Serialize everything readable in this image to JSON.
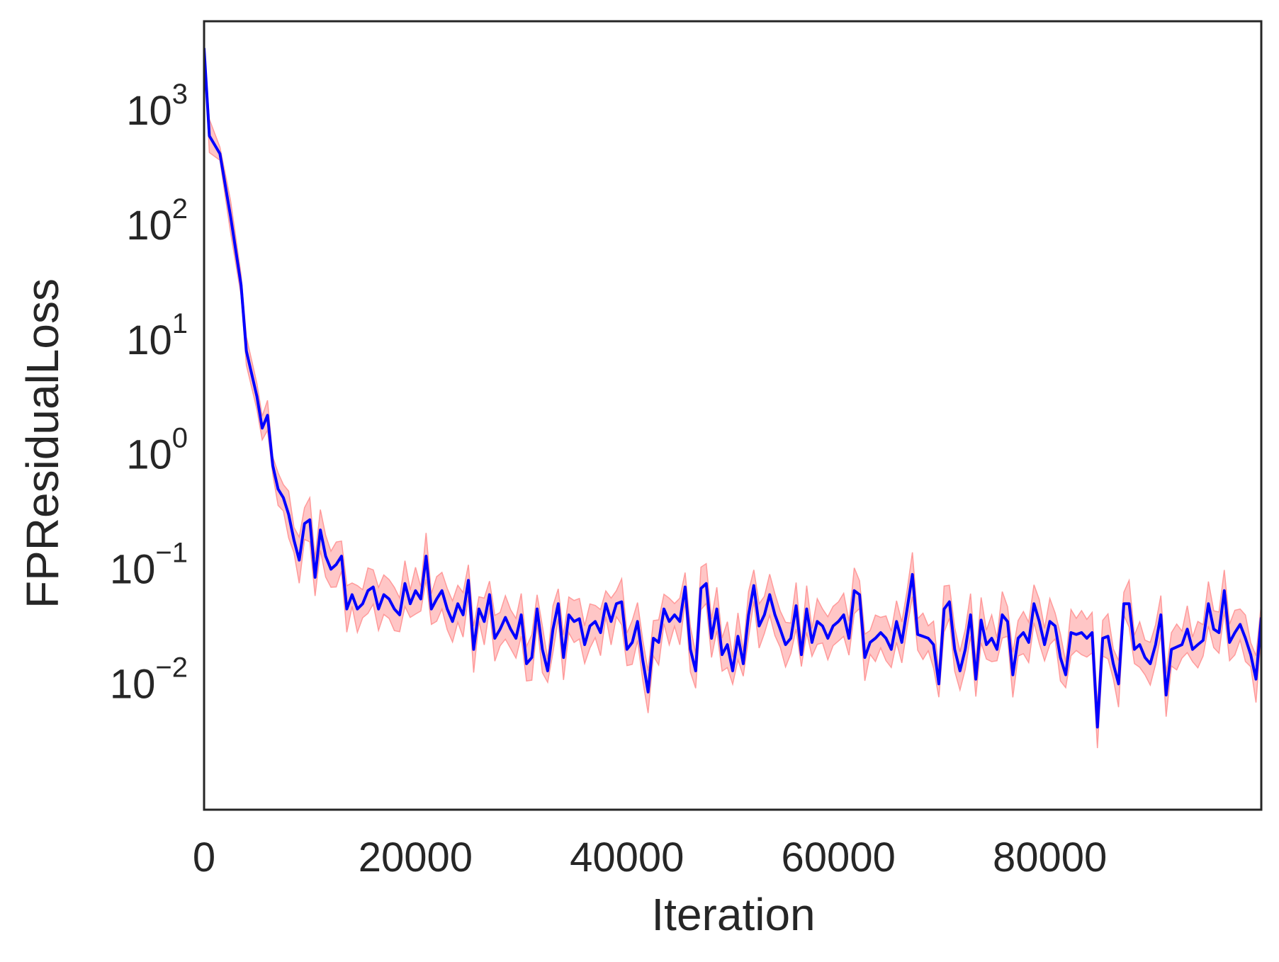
{
  "chart_data": {
    "type": "line",
    "title": "",
    "xlabel": "Iteration",
    "ylabel": "FPResidualLoss",
    "xlim": [
      0,
      100000
    ],
    "ylim": [
      0.0008,
      6000
    ],
    "yscale": "log",
    "grid": false,
    "legend": "none",
    "x_ticks": [
      0,
      20000,
      40000,
      60000,
      80000
    ],
    "x_tick_labels": [
      "0",
      "20000",
      "40000",
      "60000",
      "80000"
    ],
    "y_ticks": [
      1000,
      100,
      10,
      1,
      0.1,
      0.01
    ],
    "y_tick_labels": [
      {
        "base": "10",
        "exp": "3"
      },
      {
        "base": "10",
        "exp": "2"
      },
      {
        "base": "10",
        "exp": "1"
      },
      {
        "base": "10",
        "exp": "0"
      },
      {
        "base": "10",
        "exp": "−1"
      },
      {
        "base": "10",
        "exp": "−2"
      }
    ],
    "colors": {
      "line": "#0000ff",
      "band_fill": "#ffb3b3",
      "band_edge": "#ff9a9a",
      "axes": "#262626",
      "text": "#262626"
    },
    "series": [
      {
        "values": [
          [
            0,
            3500
          ],
          [
            500,
            600
          ],
          [
            1500,
            420
          ],
          [
            2500,
            120
          ],
          [
            3500,
            30
          ],
          [
            4000,
            8
          ],
          [
            5000,
            3.2
          ],
          [
            5500,
            1.7
          ],
          [
            6000,
            2.2
          ],
          [
            6500,
            0.8
          ],
          [
            7000,
            0.5
          ],
          [
            7500,
            0.42
          ],
          [
            8000,
            0.3
          ],
          [
            8500,
            0.18
          ],
          [
            9000,
            0.12
          ],
          [
            9500,
            0.25
          ],
          [
            10000,
            0.27
          ],
          [
            10500,
            0.085
          ],
          [
            11000,
            0.22
          ],
          [
            11500,
            0.13
          ],
          [
            12000,
            0.1
          ],
          [
            12500,
            0.11
          ],
          [
            13000,
            0.13
          ],
          [
            13500,
            0.045
          ],
          [
            14000,
            0.06
          ],
          [
            14500,
            0.045
          ],
          [
            15000,
            0.05
          ],
          [
            15500,
            0.065
          ],
          [
            16000,
            0.07
          ],
          [
            16500,
            0.045
          ],
          [
            17000,
            0.06
          ],
          [
            17500,
            0.055
          ],
          [
            18000,
            0.045
          ],
          [
            18500,
            0.04
          ],
          [
            19000,
            0.075
          ],
          [
            19500,
            0.05
          ],
          [
            20000,
            0.065
          ],
          [
            20500,
            0.055
          ],
          [
            21000,
            0.13
          ],
          [
            21500,
            0.045
          ],
          [
            22000,
            0.055
          ],
          [
            22500,
            0.065
          ],
          [
            23000,
            0.045
          ],
          [
            23500,
            0.035
          ],
          [
            24000,
            0.05
          ],
          [
            24500,
            0.04
          ],
          [
            25000,
            0.08
          ],
          [
            25500,
            0.02
          ],
          [
            26000,
            0.045
          ],
          [
            26500,
            0.035
          ],
          [
            27000,
            0.06
          ],
          [
            27500,
            0.025
          ],
          [
            28000,
            0.03
          ],
          [
            28500,
            0.038
          ],
          [
            29000,
            0.03
          ],
          [
            29500,
            0.025
          ],
          [
            30000,
            0.04
          ],
          [
            30500,
            0.015
          ],
          [
            31000,
            0.017
          ],
          [
            31500,
            0.045
          ],
          [
            32000,
            0.02
          ],
          [
            32500,
            0.013
          ],
          [
            33000,
            0.03
          ],
          [
            33500,
            0.05
          ],
          [
            34000,
            0.017
          ],
          [
            34500,
            0.04
          ],
          [
            35000,
            0.035
          ],
          [
            35500,
            0.037
          ],
          [
            36000,
            0.022
          ],
          [
            36500,
            0.032
          ],
          [
            37000,
            0.035
          ],
          [
            37500,
            0.028
          ],
          [
            38000,
            0.05
          ],
          [
            38500,
            0.035
          ],
          [
            39000,
            0.05
          ],
          [
            39500,
            0.052
          ],
          [
            40000,
            0.02
          ],
          [
            40500,
            0.023
          ],
          [
            41000,
            0.035
          ],
          [
            41500,
            0.016
          ],
          [
            42000,
            0.0085
          ],
          [
            42500,
            0.025
          ],
          [
            43000,
            0.023
          ],
          [
            43500,
            0.045
          ],
          [
            44000,
            0.035
          ],
          [
            44500,
            0.04
          ],
          [
            45000,
            0.035
          ],
          [
            45500,
            0.07
          ],
          [
            46000,
            0.02
          ],
          [
            46500,
            0.013
          ],
          [
            47000,
            0.068
          ],
          [
            47500,
            0.075
          ],
          [
            48000,
            0.025
          ],
          [
            48500,
            0.045
          ],
          [
            49000,
            0.018
          ],
          [
            49500,
            0.022
          ],
          [
            50000,
            0.013
          ],
          [
            50500,
            0.026
          ],
          [
            51000,
            0.015
          ],
          [
            51500,
            0.04
          ],
          [
            52000,
            0.072
          ],
          [
            52500,
            0.032
          ],
          [
            53000,
            0.04
          ],
          [
            53500,
            0.06
          ],
          [
            54000,
            0.04
          ],
          [
            54500,
            0.03
          ],
          [
            55000,
            0.022
          ],
          [
            55500,
            0.025
          ],
          [
            56000,
            0.048
          ],
          [
            56500,
            0.018
          ],
          [
            57000,
            0.045
          ],
          [
            57500,
            0.023
          ],
          [
            58000,
            0.035
          ],
          [
            58500,
            0.032
          ],
          [
            59000,
            0.025
          ],
          [
            59500,
            0.032
          ],
          [
            60000,
            0.035
          ],
          [
            60500,
            0.04
          ],
          [
            61000,
            0.025
          ],
          [
            61500,
            0.065
          ],
          [
            62000,
            0.06
          ],
          [
            62500,
            0.017
          ],
          [
            63000,
            0.023
          ],
          [
            63500,
            0.025
          ],
          [
            64000,
            0.028
          ],
          [
            64500,
            0.025
          ],
          [
            65000,
            0.02
          ],
          [
            65500,
            0.035
          ],
          [
            66000,
            0.023
          ],
          [
            66500,
            0.045
          ],
          [
            67000,
            0.09
          ],
          [
            67500,
            0.027
          ],
          [
            68000,
            0.026
          ],
          [
            68500,
            0.025
          ],
          [
            69000,
            0.022
          ],
          [
            69500,
            0.01
          ],
          [
            70000,
            0.045
          ],
          [
            70500,
            0.052
          ],
          [
            71000,
            0.02
          ],
          [
            71500,
            0.013
          ],
          [
            72000,
            0.02
          ],
          [
            72500,
            0.04
          ],
          [
            73000,
            0.011
          ],
          [
            73500,
            0.036
          ],
          [
            74000,
            0.022
          ],
          [
            74500,
            0.025
          ],
          [
            75000,
            0.02
          ],
          [
            75500,
            0.04
          ],
          [
            76000,
            0.035
          ],
          [
            76500,
            0.012
          ],
          [
            77000,
            0.025
          ],
          [
            77500,
            0.028
          ],
          [
            78000,
            0.023
          ],
          [
            78500,
            0.05
          ],
          [
            79000,
            0.035
          ],
          [
            79500,
            0.022
          ],
          [
            80000,
            0.035
          ],
          [
            80500,
            0.032
          ],
          [
            81000,
            0.017
          ],
          [
            81500,
            0.012
          ],
          [
            82000,
            0.028
          ],
          [
            82500,
            0.027
          ],
          [
            83000,
            0.028
          ],
          [
            83500,
            0.025
          ],
          [
            84000,
            0.028
          ],
          [
            84500,
            0.0042
          ],
          [
            85000,
            0.025
          ],
          [
            85500,
            0.026
          ],
          [
            86000,
            0.015
          ],
          [
            86500,
            0.01
          ],
          [
            87000,
            0.05
          ],
          [
            87500,
            0.05
          ],
          [
            88000,
            0.02
          ],
          [
            88500,
            0.022
          ],
          [
            89000,
            0.017
          ],
          [
            89500,
            0.015
          ],
          [
            90000,
            0.022
          ],
          [
            90500,
            0.04
          ],
          [
            91000,
            0.008
          ],
          [
            91500,
            0.02
          ],
          [
            92000,
            0.021
          ],
          [
            92500,
            0.022
          ],
          [
            93000,
            0.03
          ],
          [
            93500,
            0.02
          ],
          [
            94000,
            0.022
          ],
          [
            94500,
            0.024
          ],
          [
            95000,
            0.05
          ],
          [
            95500,
            0.03
          ],
          [
            96000,
            0.028
          ],
          [
            96500,
            0.065
          ],
          [
            97000,
            0.023
          ],
          [
            97500,
            0.028
          ],
          [
            98000,
            0.033
          ],
          [
            98500,
            0.025
          ],
          [
            99000,
            0.018
          ],
          [
            99500,
            0.011
          ],
          [
            100000,
            0.038
          ]
        ]
      }
    ]
  }
}
